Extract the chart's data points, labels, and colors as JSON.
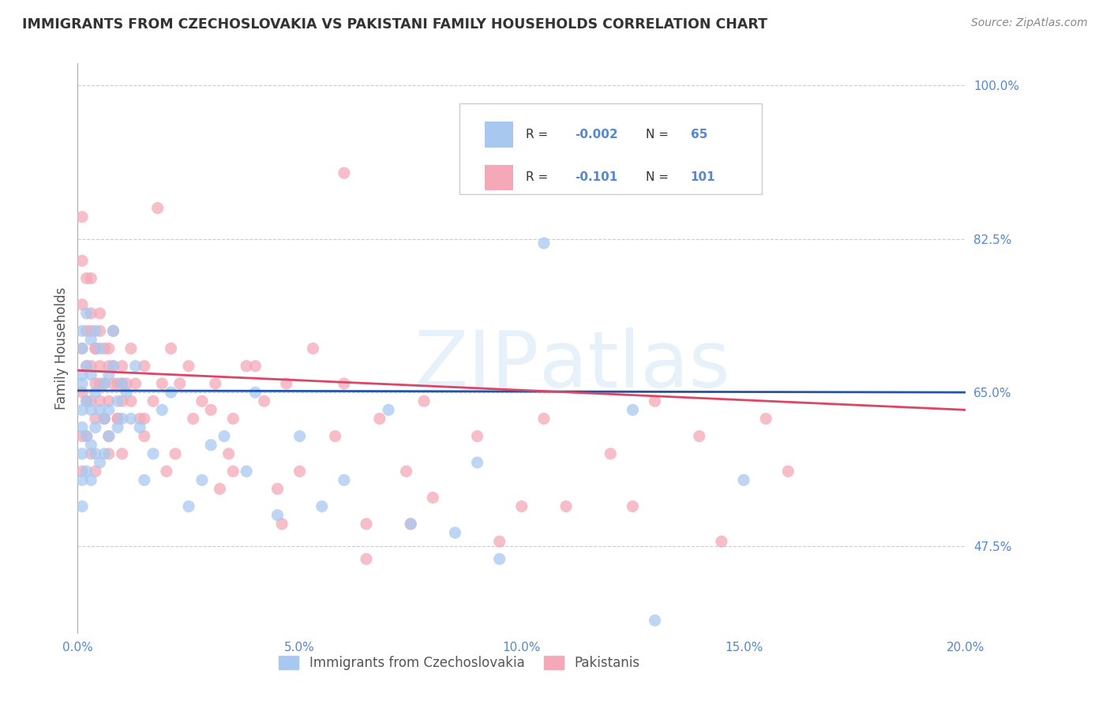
{
  "title": "IMMIGRANTS FROM CZECHOSLOVAKIA VS PAKISTANI FAMILY HOUSEHOLDS CORRELATION CHART",
  "source_text": "Source: ZipAtlas.com",
  "ylabel": "Family Households",
  "xlim": [
    0.0,
    0.2
  ],
  "ylim": [
    0.375,
    1.025
  ],
  "yticks": [
    0.475,
    0.65,
    0.825,
    1.0
  ],
  "ytick_labels": [
    "47.5%",
    "65.0%",
    "82.5%",
    "100.0%"
  ],
  "xticks": [
    0.0,
    0.05,
    0.1,
    0.15,
    0.2
  ],
  "xtick_labels": [
    "0.0%",
    "5.0%",
    "10.0%",
    "15.0%",
    "20.0%"
  ],
  "color_blue": "#A8C8F0",
  "color_pink": "#F4A8B8",
  "color_blue_line": "#2255AA",
  "color_pink_line": "#DD4466",
  "color_axis_labels": "#5588CC",
  "series1_label": "Immigrants from Czechoslovakia",
  "series2_label": "Pakistanis",
  "watermark": "ZIPAtlas",
  "blue_line_x0": 0.0,
  "blue_line_y0": 0.652,
  "blue_line_x1": 0.2,
  "blue_line_y1": 0.65,
  "pink_line_x0": 0.0,
  "pink_line_y0": 0.675,
  "pink_line_x1": 0.2,
  "pink_line_y1": 0.63,
  "blue_points_x": [
    0.001,
    0.001,
    0.001,
    0.001,
    0.001,
    0.001,
    0.001,
    0.001,
    0.001,
    0.002,
    0.002,
    0.002,
    0.002,
    0.002,
    0.003,
    0.003,
    0.003,
    0.003,
    0.003,
    0.004,
    0.004,
    0.004,
    0.004,
    0.005,
    0.005,
    0.005,
    0.006,
    0.006,
    0.006,
    0.007,
    0.007,
    0.007,
    0.008,
    0.008,
    0.009,
    0.009,
    0.01,
    0.01,
    0.011,
    0.012,
    0.013,
    0.014,
    0.015,
    0.017,
    0.019,
    0.021,
    0.025,
    0.028,
    0.033,
    0.04,
    0.05,
    0.06,
    0.075,
    0.09,
    0.105,
    0.125,
    0.15,
    0.055,
    0.07,
    0.085,
    0.03,
    0.038,
    0.045,
    0.095,
    0.13
  ],
  "blue_points_y": [
    0.63,
    0.66,
    0.7,
    0.72,
    0.58,
    0.61,
    0.55,
    0.52,
    0.67,
    0.64,
    0.68,
    0.6,
    0.56,
    0.74,
    0.63,
    0.59,
    0.71,
    0.55,
    0.67,
    0.65,
    0.61,
    0.58,
    0.72,
    0.63,
    0.57,
    0.7,
    0.66,
    0.62,
    0.58,
    0.67,
    0.63,
    0.6,
    0.72,
    0.68,
    0.64,
    0.61,
    0.66,
    0.62,
    0.65,
    0.62,
    0.68,
    0.61,
    0.55,
    0.58,
    0.63,
    0.65,
    0.52,
    0.55,
    0.6,
    0.65,
    0.6,
    0.55,
    0.5,
    0.57,
    0.82,
    0.63,
    0.55,
    0.52,
    0.63,
    0.49,
    0.59,
    0.56,
    0.51,
    0.46,
    0.39
  ],
  "pink_points_x": [
    0.001,
    0.001,
    0.001,
    0.001,
    0.001,
    0.001,
    0.001,
    0.002,
    0.002,
    0.002,
    0.002,
    0.002,
    0.003,
    0.003,
    0.003,
    0.003,
    0.004,
    0.004,
    0.004,
    0.004,
    0.005,
    0.005,
    0.005,
    0.006,
    0.006,
    0.006,
    0.007,
    0.007,
    0.007,
    0.008,
    0.008,
    0.009,
    0.009,
    0.01,
    0.01,
    0.011,
    0.012,
    0.013,
    0.014,
    0.015,
    0.017,
    0.019,
    0.021,
    0.023,
    0.025,
    0.028,
    0.031,
    0.035,
    0.038,
    0.042,
    0.047,
    0.053,
    0.06,
    0.068,
    0.078,
    0.09,
    0.105,
    0.12,
    0.14,
    0.16,
    0.003,
    0.004,
    0.005,
    0.006,
    0.007,
    0.008,
    0.009,
    0.01,
    0.012,
    0.015,
    0.02,
    0.026,
    0.034,
    0.045,
    0.058,
    0.074,
    0.003,
    0.005,
    0.007,
    0.01,
    0.015,
    0.022,
    0.032,
    0.046,
    0.065,
    0.095,
    0.125,
    0.018,
    0.03,
    0.05,
    0.075,
    0.11,
    0.145,
    0.035,
    0.065,
    0.1,
    0.04,
    0.08,
    0.06,
    0.155,
    0.13
  ],
  "pink_points_y": [
    0.65,
    0.7,
    0.75,
    0.8,
    0.85,
    0.6,
    0.56,
    0.72,
    0.68,
    0.64,
    0.78,
    0.6,
    0.72,
    0.68,
    0.64,
    0.58,
    0.7,
    0.66,
    0.62,
    0.56,
    0.72,
    0.68,
    0.64,
    0.7,
    0.66,
    0.62,
    0.68,
    0.64,
    0.6,
    0.72,
    0.68,
    0.66,
    0.62,
    0.68,
    0.64,
    0.66,
    0.7,
    0.66,
    0.62,
    0.68,
    0.64,
    0.66,
    0.7,
    0.66,
    0.68,
    0.64,
    0.66,
    0.62,
    0.68,
    0.64,
    0.66,
    0.7,
    0.66,
    0.62,
    0.64,
    0.6,
    0.62,
    0.58,
    0.6,
    0.56,
    0.74,
    0.7,
    0.66,
    0.62,
    0.58,
    0.66,
    0.62,
    0.58,
    0.64,
    0.6,
    0.56,
    0.62,
    0.58,
    0.54,
    0.6,
    0.56,
    0.78,
    0.74,
    0.7,
    0.66,
    0.62,
    0.58,
    0.54,
    0.5,
    0.46,
    0.48,
    0.52,
    0.86,
    0.63,
    0.56,
    0.5,
    0.52,
    0.48,
    0.56,
    0.5,
    0.52,
    0.68,
    0.53,
    0.9,
    0.62,
    0.64
  ]
}
